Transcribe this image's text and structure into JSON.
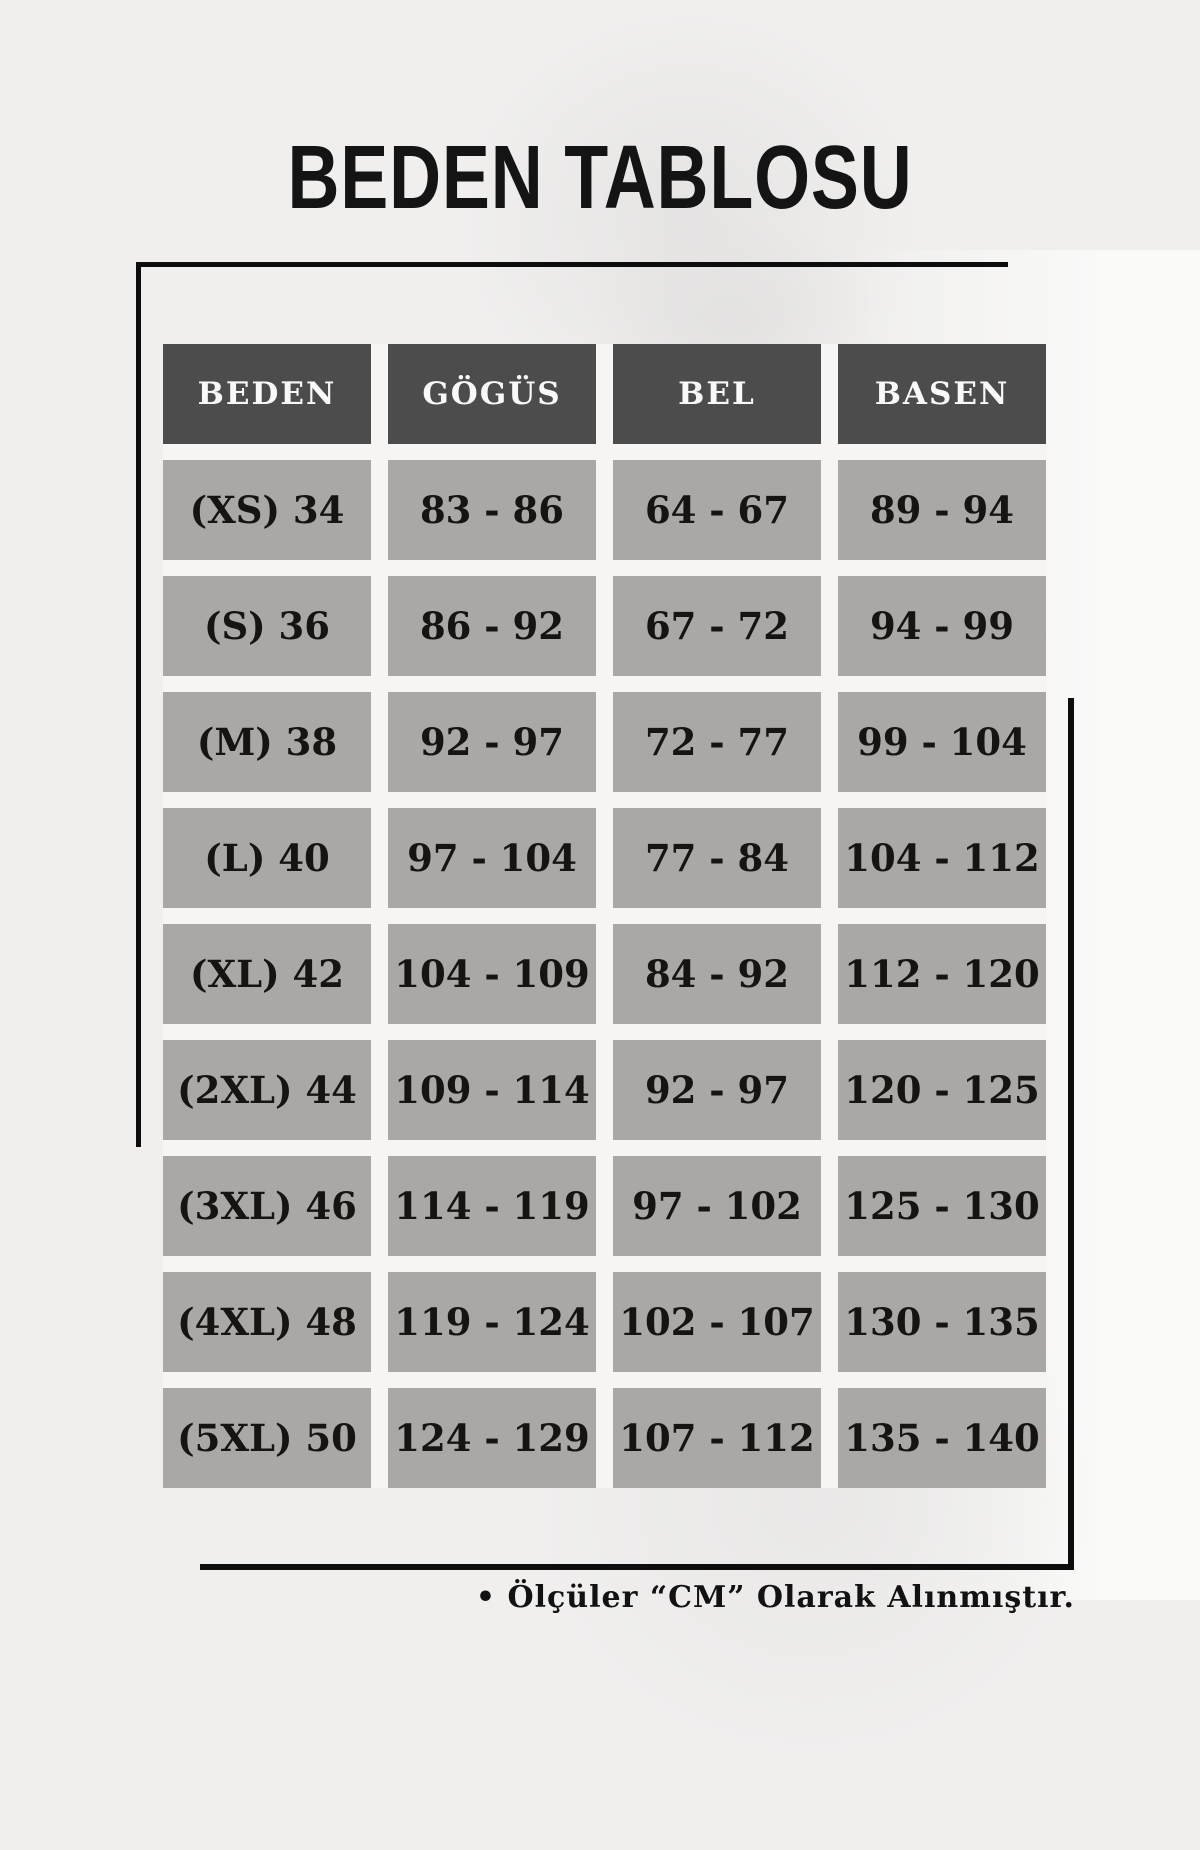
{
  "page": {
    "title": "BEDEN TABLOSU",
    "footnote": "• Ölçüler “CM” Olarak Alınmıştır."
  },
  "size_chart": {
    "columns": [
      "BEDEN",
      "GÖGÜS",
      "BEL",
      "BASEN"
    ],
    "rows": [
      [
        "(XS) 34",
        "83 - 86",
        "64 - 67",
        "89 - 94"
      ],
      [
        "(S) 36",
        "86 - 92",
        "67 - 72",
        "94 - 99"
      ],
      [
        "(M) 38",
        "92 - 97",
        "72 - 77",
        "99 - 104"
      ],
      [
        "(L) 40",
        "97 - 104",
        "77 - 84",
        "104 - 112"
      ],
      [
        "(XL) 42",
        "104 - 109",
        "84 - 92",
        "112 - 120"
      ],
      [
        "(2XL) 44",
        "109 - 114",
        "92 - 97",
        "120 - 125"
      ],
      [
        "(3XL) 46",
        "114 - 119",
        "97 - 102",
        "125 - 130"
      ],
      [
        "(4XL) 48",
        "119 - 124",
        "102 - 107",
        "130 - 135"
      ],
      [
        "(5XL) 50",
        "124 - 129",
        "107 - 112",
        "135 - 140"
      ]
    ],
    "unit": "CM"
  },
  "colors": {
    "page_background": "#f0efee",
    "header_cell_background": "#4d4c4c",
    "header_text": "#faf9f9",
    "data_cell_background": "#a9a8a6",
    "data_text": "#151413",
    "frame_line": "#0d0d0d"
  }
}
